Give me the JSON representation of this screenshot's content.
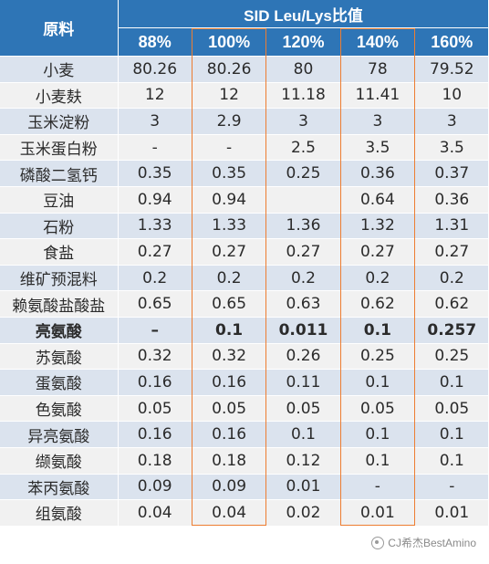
{
  "header": {
    "material": "原料",
    "group_title": "SID Leu/Lys比值",
    "columns": [
      "88%",
      "100%",
      "120%",
      "140%",
      "160%"
    ]
  },
  "rows": [
    {
      "name": "小麦",
      "values": [
        "80.26",
        "80.26",
        "80",
        "78",
        "79.52"
      ],
      "bold": false
    },
    {
      "name": "小麦麸",
      "values": [
        "12",
        "12",
        "11.18",
        "11.41",
        "10"
      ],
      "bold": false
    },
    {
      "name": "玉米淀粉",
      "values": [
        "3",
        "2.9",
        "3",
        "3",
        "3"
      ],
      "bold": false
    },
    {
      "name": "玉米蛋白粉",
      "values": [
        "-",
        "-",
        "2.5",
        "3.5",
        "3.5"
      ],
      "bold": false
    },
    {
      "name": "磷酸二氢钙",
      "values": [
        "0.35",
        "0.35",
        "0.25",
        "0.36",
        "0.37"
      ],
      "bold": false
    },
    {
      "name": "豆油",
      "values": [
        "0.94",
        "0.94",
        "",
        "0.64",
        "0.36"
      ],
      "bold": false
    },
    {
      "name": "石粉",
      "values": [
        "1.33",
        "1.33",
        "1.36",
        "1.32",
        "1.31"
      ],
      "bold": false
    },
    {
      "name": "食盐",
      "values": [
        "0.27",
        "0.27",
        "0.27",
        "0.27",
        "0.27"
      ],
      "bold": false
    },
    {
      "name": "维矿预混料",
      "values": [
        "0.2",
        "0.2",
        "0.2",
        "0.2",
        "0.2"
      ],
      "bold": false
    },
    {
      "name": "赖氨酸盐酸盐",
      "values": [
        "0.65",
        "0.65",
        "0.63",
        "0.62",
        "0.62"
      ],
      "bold": false
    },
    {
      "name": "亮氨酸",
      "values": [
        "–",
        "0.1",
        "0.011",
        "0.1",
        "0.257"
      ],
      "bold": true
    },
    {
      "name": "苏氨酸",
      "values": [
        "0.32",
        "0.32",
        "0.26",
        "0.25",
        "0.25"
      ],
      "bold": false
    },
    {
      "name": "蛋氨酸",
      "values": [
        "0.16",
        "0.16",
        "0.11",
        "0.1",
        "0.1"
      ],
      "bold": false
    },
    {
      "name": "色氨酸",
      "values": [
        "0.05",
        "0.05",
        "0.05",
        "0.05",
        "0.05"
      ],
      "bold": false
    },
    {
      "name": "异亮氨酸",
      "values": [
        "0.16",
        "0.16",
        "0.1",
        "0.1",
        "0.1"
      ],
      "bold": false
    },
    {
      "name": "缬氨酸",
      "values": [
        "0.18",
        "0.18",
        "0.12",
        "0.1",
        "0.1"
      ],
      "bold": false
    },
    {
      "name": "苯丙氨酸",
      "values": [
        "0.09",
        "0.09",
        "0.01",
        "-",
        "-"
      ],
      "bold": false
    },
    {
      "name": "组氨酸",
      "values": [
        "0.04",
        "0.04",
        "0.02",
        "0.01",
        "0.01"
      ],
      "bold": false
    }
  ],
  "highlight_color": "#ed7d31",
  "header_color": "#2e75b6",
  "watermark": {
    "icon": "wechat-channel-icon",
    "text": "CJ希杰BestAmino"
  }
}
